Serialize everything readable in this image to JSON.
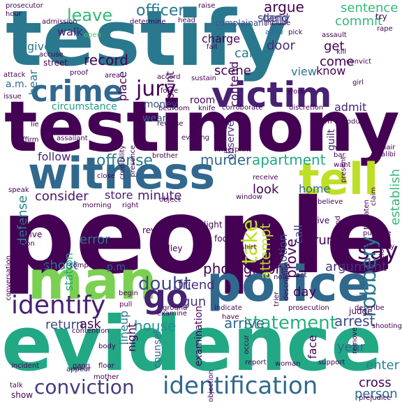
{
  "words": [
    {
      "text": "people",
      "color": "#440154"
    },
    {
      "text": "testify",
      "color": "#2a788e"
    },
    {
      "text": "testimony",
      "color": "#440154"
    },
    {
      "text": "evidence",
      "color": "#22a884"
    },
    {
      "text": "police",
      "color": "#31688e"
    },
    {
      "text": "witness",
      "color": "#31688e"
    },
    {
      "text": "man",
      "color": "#7ad151"
    },
    {
      "text": "victim",
      "color": "#482173"
    },
    {
      "text": "crime",
      "color": "#31688e"
    },
    {
      "text": "tell",
      "color": "#bddf26"
    },
    {
      "text": "identify",
      "color": "#482173"
    },
    {
      "text": "go",
      "color": "#482173"
    },
    {
      "text": "identification",
      "color": "#31688e"
    },
    {
      "text": "conviction",
      "color": "#443a83"
    },
    {
      "text": "statement",
      "color": "#29af7f"
    },
    {
      "text": "say",
      "color": "#440154"
    },
    {
      "text": "robbery",
      "color": "#2a788e"
    },
    {
      "text": "take",
      "color": "#bddf26"
    },
    {
      "text": "jury",
      "color": "#440154"
    },
    {
      "text": "leave",
      "color": "#35b779"
    },
    {
      "text": "officer",
      "color": "#2a788e"
    },
    {
      "text": "doubt",
      "color": "#3e4989"
    },
    {
      "text": "argue",
      "color": "#440154"
    },
    {
      "text": "sentence",
      "color": "#35b779"
    },
    {
      "text": "commit",
      "color": "#35b779"
    },
    {
      "text": "establish",
      "color": "#35b779"
    },
    {
      "text": "defense",
      "color": "#26828e"
    },
    {
      "text": "offense",
      "color": "#2a788e"
    },
    {
      "text": "murder",
      "color": "#31688e"
    },
    {
      "text": "apartment",
      "color": "#22a884"
    },
    {
      "text": "photograph",
      "color": "#440154"
    },
    {
      "text": "argument",
      "color": "#46327e"
    },
    {
      "text": "arrest",
      "color": "#3e4989"
    },
    {
      "text": "cross",
      "color": "#440154"
    },
    {
      "text": "person",
      "color": "#31688e"
    },
    {
      "text": "attempt",
      "color": "#bddf26"
    },
    {
      "text": "prove",
      "color": "#440154"
    },
    {
      "text": "house",
      "color": "#21918c"
    },
    {
      "text": "arrive",
      "color": "#31688e"
    },
    {
      "text": "year",
      "color": "#31688e"
    },
    {
      "text": "return",
      "color": "#3e4989"
    },
    {
      "text": "gun",
      "color": "#46327e"
    },
    {
      "text": "friend",
      "color": "#472d7b"
    },
    {
      "text": "ask",
      "color": "#440154"
    },
    {
      "text": "error",
      "color": "#2a788e"
    },
    {
      "text": "shoot",
      "color": "#2a788e"
    },
    {
      "text": "lineup",
      "color": "#2a788e"
    },
    {
      "text": "home",
      "color": "#31688e"
    },
    {
      "text": "look",
      "color": "#440154"
    },
    {
      "text": "consider",
      "color": "#481668"
    },
    {
      "text": "follow",
      "color": "#482173"
    },
    {
      "text": "store",
      "color": "#482173"
    },
    {
      "text": "minute",
      "color": "#482173"
    },
    {
      "text": "motion",
      "color": "#3e4989"
    },
    {
      "text": "station",
      "color": "#22a884"
    },
    {
      "text": "call",
      "color": "#3e4989"
    },
    {
      "text": "run",
      "color": "#440154"
    },
    {
      "text": "day",
      "color": "#440154"
    },
    {
      "text": "enter",
      "color": "#26828e"
    },
    {
      "text": "face",
      "color": "#440154"
    },
    {
      "text": "get",
      "color": "#440154"
    },
    {
      "text": "come",
      "color": "#440154"
    },
    {
      "text": "know",
      "color": "#440154"
    },
    {
      "text": "view",
      "color": "#2a788e"
    },
    {
      "text": "admit",
      "color": "#482173"
    },
    {
      "text": "guilt",
      "color": "#482173"
    },
    {
      "text": "door",
      "color": "#472d7b"
    },
    {
      "text": "car",
      "color": "#2a788e"
    },
    {
      "text": "scene",
      "color": "#440154"
    },
    {
      "text": "charge",
      "color": "#440154"
    },
    {
      "text": "contend",
      "color": "#440154"
    },
    {
      "text": "record",
      "color": "#440154"
    },
    {
      "text": "give",
      "color": "#2a788e"
    },
    {
      "text": "walk",
      "color": "#482173"
    },
    {
      "text": "deny",
      "color": "#3e4989"
    },
    {
      "text": "stand",
      "color": "#443a83"
    },
    {
      "text": "place",
      "color": "#440154"
    },
    {
      "text": "point",
      "color": "#440154"
    },
    {
      "text": "hear",
      "color": "#2a788e"
    },
    {
      "text": "money",
      "color": "#3e4989"
    },
    {
      "text": "wear",
      "color": "#31688e"
    },
    {
      "text": "room",
      "color": "#440154"
    },
    {
      "text": "circumstance",
      "color": "#1f9e89"
    },
    {
      "text": "observe",
      "color": "#46327e"
    },
    {
      "text": "p.m.",
      "color": "#31688e"
    },
    {
      "text": "night",
      "color": "#440154"
    },
    {
      "text": "counsel",
      "color": "#31688e"
    },
    {
      "text": "examination",
      "color": "#440154"
    },
    {
      "text": "judge",
      "color": "#440154"
    },
    {
      "text": "a.m.",
      "color": "#31688e"
    },
    {
      "text": "complainant",
      "color": "#3b528b"
    },
    {
      "text": "head",
      "color": "#440154"
    },
    {
      "text": "determine",
      "color": "#440154"
    },
    {
      "text": "prosecutor",
      "color": "#440154"
    },
    {
      "text": "hour",
      "color": "#440154"
    },
    {
      "text": "raise",
      "color": "#440154"
    },
    {
      "text": "try",
      "color": "#440154"
    },
    {
      "text": "rape",
      "color": "#440154"
    },
    {
      "text": "include",
      "color": "#440154"
    },
    {
      "text": "allow",
      "color": "#31688e"
    },
    {
      "text": "pick",
      "color": "#440154"
    },
    {
      "text": "assault",
      "color": "#440154"
    },
    {
      "text": "open",
      "color": "#5ec962"
    },
    {
      "text": "fail",
      "color": "#440154"
    },
    {
      "text": "street",
      "color": "#440154"
    },
    {
      "text": "convict",
      "color": "#440154"
    },
    {
      "text": "accuse",
      "color": "#440154"
    },
    {
      "text": "proof",
      "color": "#440154"
    },
    {
      "text": "area",
      "color": "#440154"
    },
    {
      "text": "accord",
      "color": "#440154"
    },
    {
      "text": "sustain",
      "color": "#440154"
    },
    {
      "text": "girl",
      "color": "#440154"
    },
    {
      "text": "kill",
      "color": "#440154"
    },
    {
      "text": "attack",
      "color": "#440154"
    },
    {
      "text": "issue",
      "color": "#440154"
    },
    {
      "text": "force",
      "color": "#440154"
    },
    {
      "text": "work",
      "color": "#440154"
    },
    {
      "text": "bedroom",
      "color": "#440154"
    },
    {
      "text": "knife",
      "color": "#440154"
    },
    {
      "text": "corroborate",
      "color": "#440154"
    },
    {
      "text": "discretion",
      "color": "#440154"
    },
    {
      "text": "introduce",
      "color": "#440154"
    },
    {
      "text": "turn",
      "color": "#440154"
    },
    {
      "text": "reverse",
      "color": "#440154"
    },
    {
      "text": "evening",
      "color": "#440154"
    },
    {
      "text": "credibility",
      "color": "#440154"
    },
    {
      "text": "presence",
      "color": "#440154"
    },
    {
      "text": "assailant",
      "color": "#440154"
    },
    {
      "text": "affirm",
      "color": "#440154"
    },
    {
      "text": "base",
      "color": "#440154"
    },
    {
      "text": "lie",
      "color": "#440154"
    },
    {
      "text": "brother",
      "color": "#440154"
    },
    {
      "text": "fingerprint",
      "color": "#440154"
    },
    {
      "text": "present",
      "color": "#440154"
    },
    {
      "text": "bar",
      "color": "#440154"
    },
    {
      "text": "want",
      "color": "#440154"
    },
    {
      "text": "hair",
      "color": "#440154"
    },
    {
      "text": "alibi",
      "color": "#440154"
    },
    {
      "text": "threaten",
      "color": "#440154"
    },
    {
      "text": "claim",
      "color": "#440154"
    },
    {
      "text": "receive",
      "color": "#440154"
    },
    {
      "text": "believe",
      "color": "#440154"
    },
    {
      "text": "window",
      "color": "#440154"
    },
    {
      "text": "object",
      "color": "#440154"
    },
    {
      "text": "morning",
      "color": "#440154"
    },
    {
      "text": "close",
      "color": "#440154"
    },
    {
      "text": "speak",
      "color": "#440154"
    },
    {
      "text": "right",
      "color": "#440154"
    },
    {
      "text": "blood",
      "color": "#440154"
    },
    {
      "text": "drive",
      "color": "#440154"
    },
    {
      "text": "reason",
      "color": "#440154"
    },
    {
      "text": "conversation",
      "color": "#440154"
    },
    {
      "text": "concern",
      "color": "#440154"
    },
    {
      "text": "review",
      "color": "#440154"
    },
    {
      "text": "alley",
      "color": "#440154"
    },
    {
      "text": "light",
      "color": "#440154"
    },
    {
      "text": "foot",
      "color": "#440154"
    },
    {
      "text": "live",
      "color": "#440154"
    },
    {
      "text": "hand",
      "color": "#440154"
    },
    {
      "text": "purpose",
      "color": "#440154"
    },
    {
      "text": "clothing",
      "color": "#440154"
    },
    {
      "text": "opportunity",
      "color": "#440154"
    },
    {
      "text": "shirt",
      "color": "#440154"
    },
    {
      "text": "description",
      "color": "#440154"
    },
    {
      "text": "jacket",
      "color": "#440154"
    },
    {
      "text": "complain",
      "color": "#440154"
    },
    {
      "text": "begin",
      "color": "#440154"
    },
    {
      "text": "pull",
      "color": "#440154"
    },
    {
      "text": "examine",
      "color": "#440154"
    },
    {
      "text": "ground",
      "color": "#440154"
    },
    {
      "text": "note",
      "color": "#440154"
    },
    {
      "text": "act",
      "color": "#440154"
    },
    {
      "text": "trier",
      "color": "#440154"
    },
    {
      "text": "indicate",
      "color": "#440154"
    },
    {
      "text": "have",
      "color": "#440154"
    },
    {
      "text": "prosecution",
      "color": "#440154"
    },
    {
      "text": "describe",
      "color": "#440154"
    },
    {
      "text": "remove",
      "color": "#440154"
    },
    {
      "text": "shooting",
      "color": "#440154"
    },
    {
      "text": "contention",
      "color": "#440154"
    },
    {
      "text": "body",
      "color": "#440154"
    },
    {
      "text": "incident",
      "color": "#440154"
    },
    {
      "text": "gang",
      "color": "#440154"
    },
    {
      "text": "floor",
      "color": "#440154"
    },
    {
      "text": "mother",
      "color": "#440154"
    },
    {
      "text": "appear",
      "color": "#440154"
    },
    {
      "text": "talk",
      "color": "#440154"
    },
    {
      "text": "show",
      "color": "#440154"
    },
    {
      "text": "occur",
      "color": "#440154"
    },
    {
      "text": "objection",
      "color": "#440154"
    },
    {
      "text": "report",
      "color": "#440154"
    },
    {
      "text": "woman",
      "color": "#440154"
    },
    {
      "text": "support",
      "color": "#440154"
    },
    {
      "text": "prejudice",
      "color": "#440154"
    },
    {
      "text": "admission",
      "color": "#440154"
    }
  ]
}
